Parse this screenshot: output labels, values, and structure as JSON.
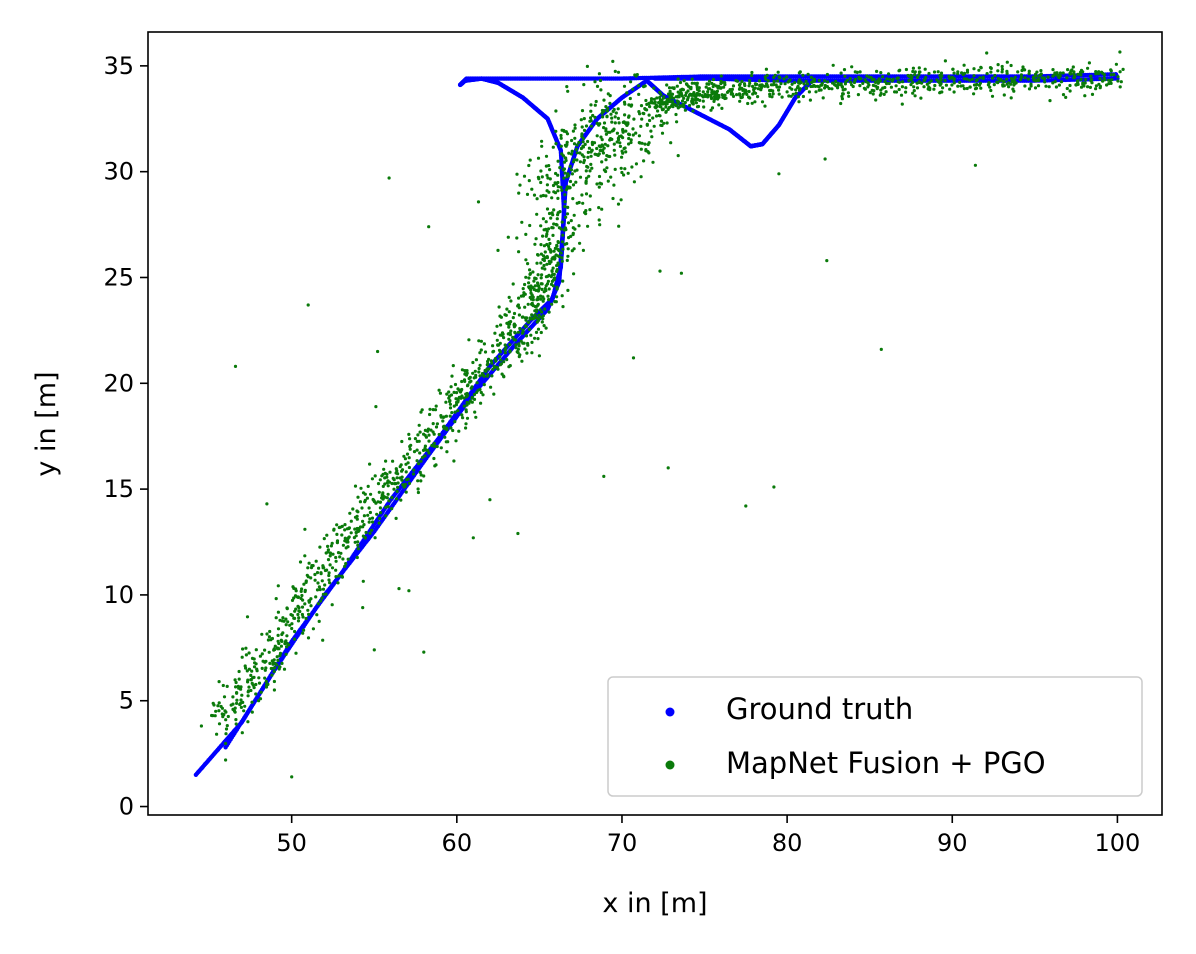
{
  "chart_data": {
    "type": "scatter",
    "title": "",
    "xlabel": "x in [m]",
    "ylabel": "y in [m]",
    "xlim": [
      41.3,
      102.7
    ],
    "ylim": [
      -0.4,
      36.6
    ],
    "xticks": [
      50,
      60,
      70,
      80,
      90,
      100
    ],
    "yticks": [
      0,
      5,
      10,
      15,
      20,
      25,
      30,
      35
    ],
    "grid": false,
    "legend_position": "lower-right",
    "series": [
      {
        "name": "Ground truth",
        "color": "#0000ff",
        "marker": "dense-dots",
        "paths": [
          [
            [
              44.2,
              1.5
            ],
            [
              47.0,
              4.0
            ],
            [
              50.0,
              7.8
            ],
            [
              53.0,
              11.0
            ],
            [
              56.0,
              14.5
            ],
            [
              59.0,
              17.5
            ],
            [
              62.0,
              20.8
            ],
            [
              64.5,
              23.0
            ],
            [
              65.8,
              24.0
            ],
            [
              66.3,
              25.5
            ],
            [
              66.5,
              28.0
            ],
            [
              66.3,
              31.0
            ],
            [
              65.5,
              32.5
            ],
            [
              64.0,
              33.5
            ],
            [
              62.5,
              34.2
            ],
            [
              61.5,
              34.4
            ],
            [
              60.5,
              34.3
            ],
            [
              60.2,
              34.1
            ],
            [
              60.6,
              34.4
            ],
            [
              65.0,
              34.4
            ],
            [
              70.0,
              34.4
            ],
            [
              75.0,
              34.5
            ],
            [
              80.0,
              34.5
            ],
            [
              85.0,
              34.5
            ],
            [
              90.0,
              34.5
            ],
            [
              95.0,
              34.5
            ],
            [
              99.9,
              34.6
            ],
            [
              100.0,
              34.4
            ],
            [
              95.0,
              34.3
            ],
            [
              90.0,
              34.3
            ],
            [
              85.0,
              34.3
            ],
            [
              80.0,
              34.3
            ],
            [
              75.0,
              34.4
            ],
            [
              72.0,
              34.4
            ]
          ],
          [
            [
              46.0,
              2.8
            ],
            [
              49.0,
              6.5
            ],
            [
              52.0,
              10.0
            ],
            [
              55.0,
              13.0
            ],
            [
              58.0,
              16.3
            ],
            [
              61.0,
              19.5
            ],
            [
              63.5,
              21.8
            ],
            [
              65.5,
              23.5
            ],
            [
              66.2,
              24.8
            ],
            [
              66.4,
              27.0
            ],
            [
              66.6,
              29.5
            ],
            [
              67.3,
              31.2
            ],
            [
              68.5,
              32.5
            ],
            [
              70.0,
              33.5
            ],
            [
              71.5,
              34.3
            ]
          ],
          [
            [
              71.5,
              34.3
            ],
            [
              72.5,
              33.6
            ],
            [
              74.5,
              32.8
            ],
            [
              76.5,
              32.0
            ],
            [
              77.8,
              31.2
            ],
            [
              78.5,
              31.3
            ],
            [
              79.5,
              32.2
            ],
            [
              80.5,
              33.5
            ],
            [
              81.5,
              34.3
            ]
          ]
        ]
      },
      {
        "name": "MapNet Fusion + PGO",
        "color": "#0a7a0a",
        "marker": "small-dots",
        "core_path": [
          [
            45.8,
            4.0
          ],
          [
            48.5,
            6.8
          ],
          [
            51.0,
            10.2
          ],
          [
            54.0,
            13.2
          ],
          [
            57.0,
            16.0
          ],
          [
            60.0,
            19.0
          ],
          [
            62.5,
            21.5
          ],
          [
            64.5,
            23.3
          ],
          [
            65.6,
            25.5
          ],
          [
            66.3,
            28.5
          ],
          [
            67.5,
            30.5
          ],
          [
            69.0,
            31.8
          ],
          [
            71.0,
            32.8
          ],
          [
            73.5,
            33.5
          ],
          [
            76.0,
            33.8
          ],
          [
            80.0,
            34.1
          ],
          [
            85.0,
            34.2
          ],
          [
            90.0,
            34.3
          ],
          [
            95.0,
            34.4
          ],
          [
            100.0,
            34.4
          ]
        ],
        "outliers": [
          [
            46.6,
            20.8
          ],
          [
            51.0,
            23.7
          ],
          [
            55.9,
            29.7
          ],
          [
            58.3,
            27.4
          ],
          [
            48.5,
            14.3
          ],
          [
            50.0,
            1.4
          ],
          [
            46.0,
            2.2
          ],
          [
            55.0,
            7.4
          ],
          [
            58.0,
            7.3
          ],
          [
            56.5,
            10.3
          ],
          [
            57.1,
            10.2
          ],
          [
            54.3,
            9.4
          ],
          [
            55.1,
            18.9
          ],
          [
            55.2,
            21.5
          ],
          [
            61.0,
            12.7
          ],
          [
            63.7,
            12.9
          ],
          [
            62.0,
            14.5
          ],
          [
            68.9,
            15.6
          ],
          [
            70.7,
            21.2
          ],
          [
            72.8,
            16.0
          ],
          [
            72.3,
            25.3
          ],
          [
            73.6,
            25.2
          ],
          [
            77.5,
            14.2
          ],
          [
            79.2,
            15.1
          ],
          [
            82.4,
            25.8
          ],
          [
            82.3,
            30.6
          ],
          [
            85.7,
            21.6
          ],
          [
            91.4,
            30.3
          ],
          [
            79.5,
            29.9
          ],
          [
            65.0,
            21.3
          ],
          [
            50.8,
            13.1
          ]
        ]
      }
    ]
  }
}
